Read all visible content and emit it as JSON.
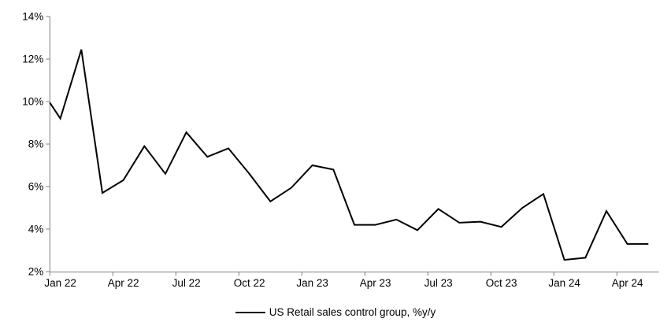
{
  "chart_data": {
    "type": "line",
    "title": "",
    "xlabel": "",
    "ylabel": "",
    "grid": false,
    "background_color": "#ffffff",
    "axis_color": "#7f7f7f",
    "series_color": "#000000",
    "ylim": [
      2,
      14
    ],
    "y_tick_labels": [
      "14%",
      "12%",
      "10%",
      "8%",
      "6%",
      "4%",
      "2%"
    ],
    "y_tick_values": [
      14,
      12,
      10,
      8,
      6,
      4,
      2
    ],
    "x_tick_labels": [
      "Jan 22",
      "Apr 22",
      "Jul 22",
      "Oct 22",
      "Jan 23",
      "Apr 23",
      "Jul 23",
      "Oct 23",
      "Jan 24",
      "Apr 24"
    ],
    "x_tick_every_n_months": 3,
    "legend_position": "bottom-center",
    "edge_start": {
      "value": 9.95,
      "note": "line enters the plot from the left y-axis at this value"
    },
    "categories": [
      "Jan 22",
      "Feb 22",
      "Mar 22",
      "Apr 22",
      "May 22",
      "Jun 22",
      "Jul 22",
      "Aug 22",
      "Sep 22",
      "Oct 22",
      "Nov 22",
      "Dec 22",
      "Jan 23",
      "Feb 23",
      "Mar 23",
      "Apr 23",
      "May 23",
      "Jun 23",
      "Jul 23",
      "Aug 23",
      "Sep 23",
      "Oct 23",
      "Nov 23",
      "Dec 23",
      "Jan 24",
      "Feb 24",
      "Mar 24",
      "Apr 24",
      "May 24"
    ],
    "series": [
      {
        "name": "US Retail sales control group, %y/y",
        "values": [
          9.2,
          12.45,
          5.7,
          6.3,
          7.9,
          6.6,
          8.55,
          7.4,
          7.8,
          6.6,
          5.3,
          5.95,
          7.0,
          6.8,
          4.2,
          4.2,
          4.45,
          3.95,
          4.95,
          4.3,
          4.35,
          4.1,
          5.0,
          5.65,
          2.55,
          2.65,
          4.85,
          3.3,
          3.3
        ]
      }
    ]
  }
}
